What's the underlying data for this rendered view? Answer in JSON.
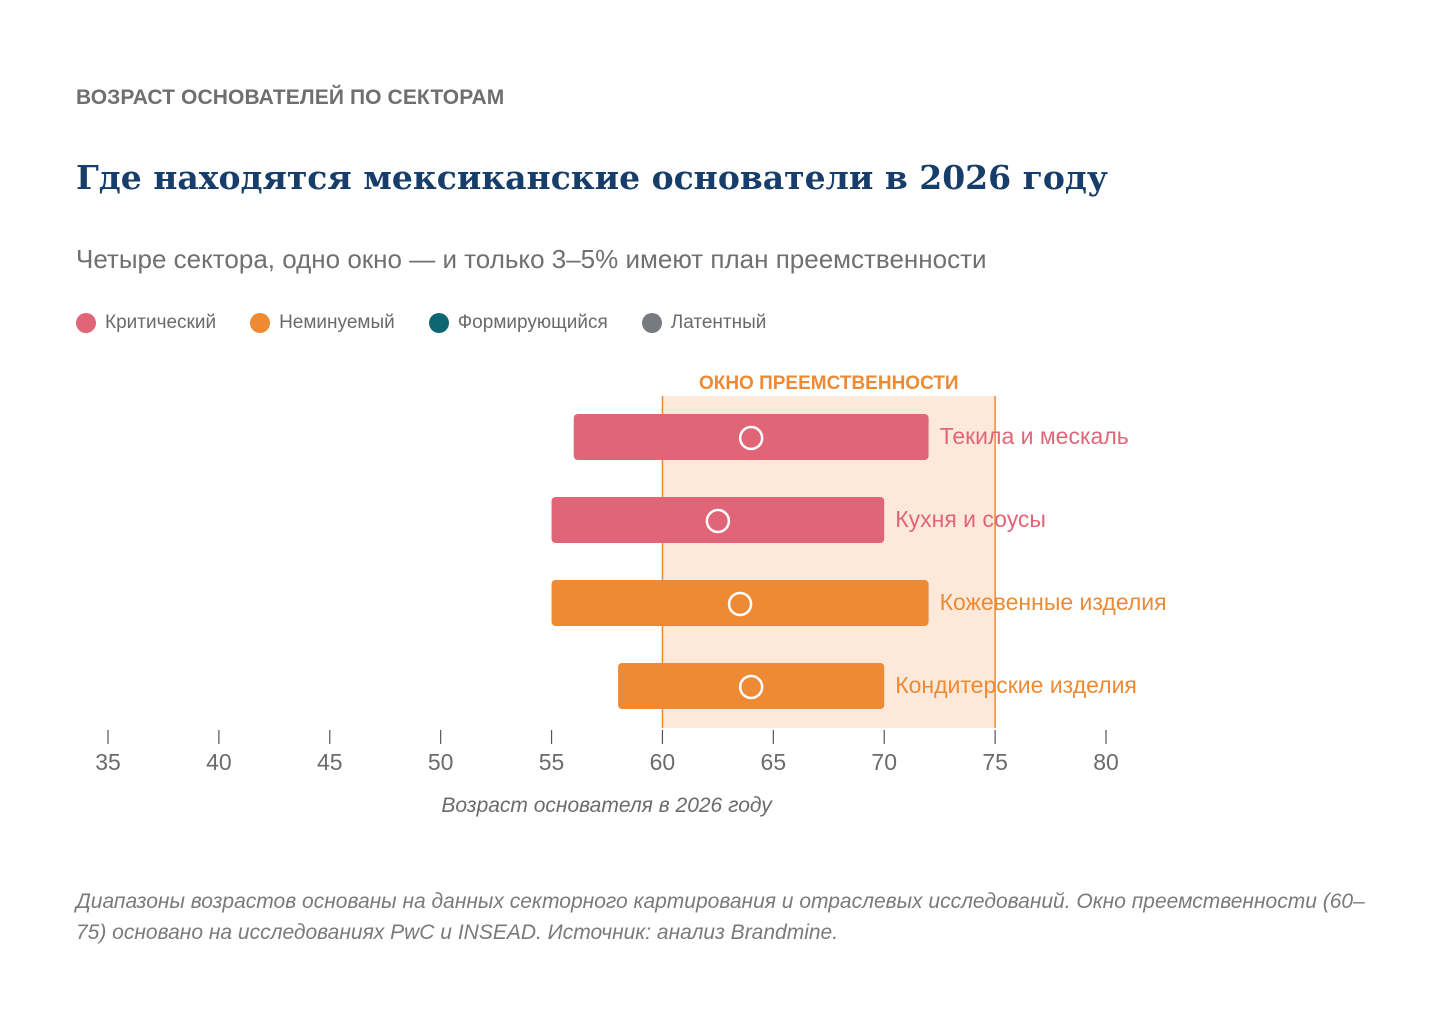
{
  "header": {
    "eyebrow": "ВОЗРАСТ ОСНОВАТЕЛЕЙ ПО СЕКТОРАМ",
    "title": "Где находятся мексиканские основатели в 2026 году",
    "subtitle": "Четыре сектора, одно окно — и только 3–5% имеют план преемственности"
  },
  "legend": [
    {
      "label": "Критический",
      "color": "#e06677"
    },
    {
      "label": "Неминуемый",
      "color": "#ee8a33"
    },
    {
      "label": "Формирующийся",
      "color": "#0e6673"
    },
    {
      "label": "Латентный",
      "color": "#777b80"
    }
  ],
  "chart_data": {
    "type": "range-bar",
    "xlabel": "Возраст основателя в 2026 году",
    "xlim": [
      35,
      80
    ],
    "xticks": [
      35,
      40,
      45,
      50,
      55,
      60,
      65,
      70,
      75,
      80
    ],
    "window": {
      "label": "ОКНО ПРЕЕМСТВЕННОСТИ",
      "start": 60,
      "end": 75,
      "fill": "#fde9d9",
      "line": "#ee8a33"
    },
    "series": [
      {
        "label": "Текила и мескаль",
        "category": "Критический",
        "min": 56,
        "max": 72,
        "median": 64,
        "color": "#e06677"
      },
      {
        "label": "Кухня и соусы",
        "category": "Критический",
        "min": 55,
        "max": 70,
        "median": 62.5,
        "color": "#e06677"
      },
      {
        "label": "Кожевенные изделия",
        "category": "Неминуемый",
        "min": 55,
        "max": 72,
        "median": 63.5,
        "color": "#ee8a33"
      },
      {
        "label": "Кондитерские изделия",
        "category": "Неминуемый",
        "min": 58,
        "max": 70,
        "median": 64,
        "color": "#ee8a33"
      }
    ]
  },
  "footnote": "Диапазоны возрастов основаны на данных секторного картирования и отраслевых исследований. Окно преемственности (60–75) основано на исследованиях PwC и INSEAD. Источник: анализ Brandmine."
}
